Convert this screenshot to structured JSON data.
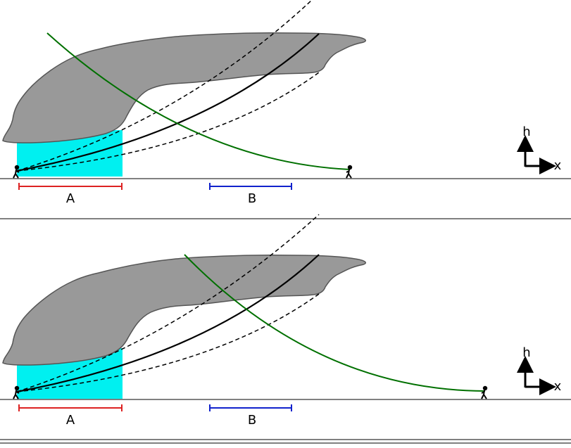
{
  "colors": {
    "cloud_fill": "#999999",
    "cloud_stroke": "#555555",
    "precip_fill": "#00f0f0",
    "green_ray": "#007000",
    "range_a": "#dd2222",
    "range_b": "#1122cc",
    "ray": "#000000",
    "ground": "#000000"
  },
  "panels": [
    {
      "id": "top",
      "range_a_label": "A",
      "range_b_label": "B",
      "axis_h_label": "h",
      "axis_x_label": "x"
    },
    {
      "id": "bottom",
      "range_a_label": "A",
      "range_b_label": "B",
      "axis_h_label": "h",
      "axis_x_label": "x"
    }
  ]
}
